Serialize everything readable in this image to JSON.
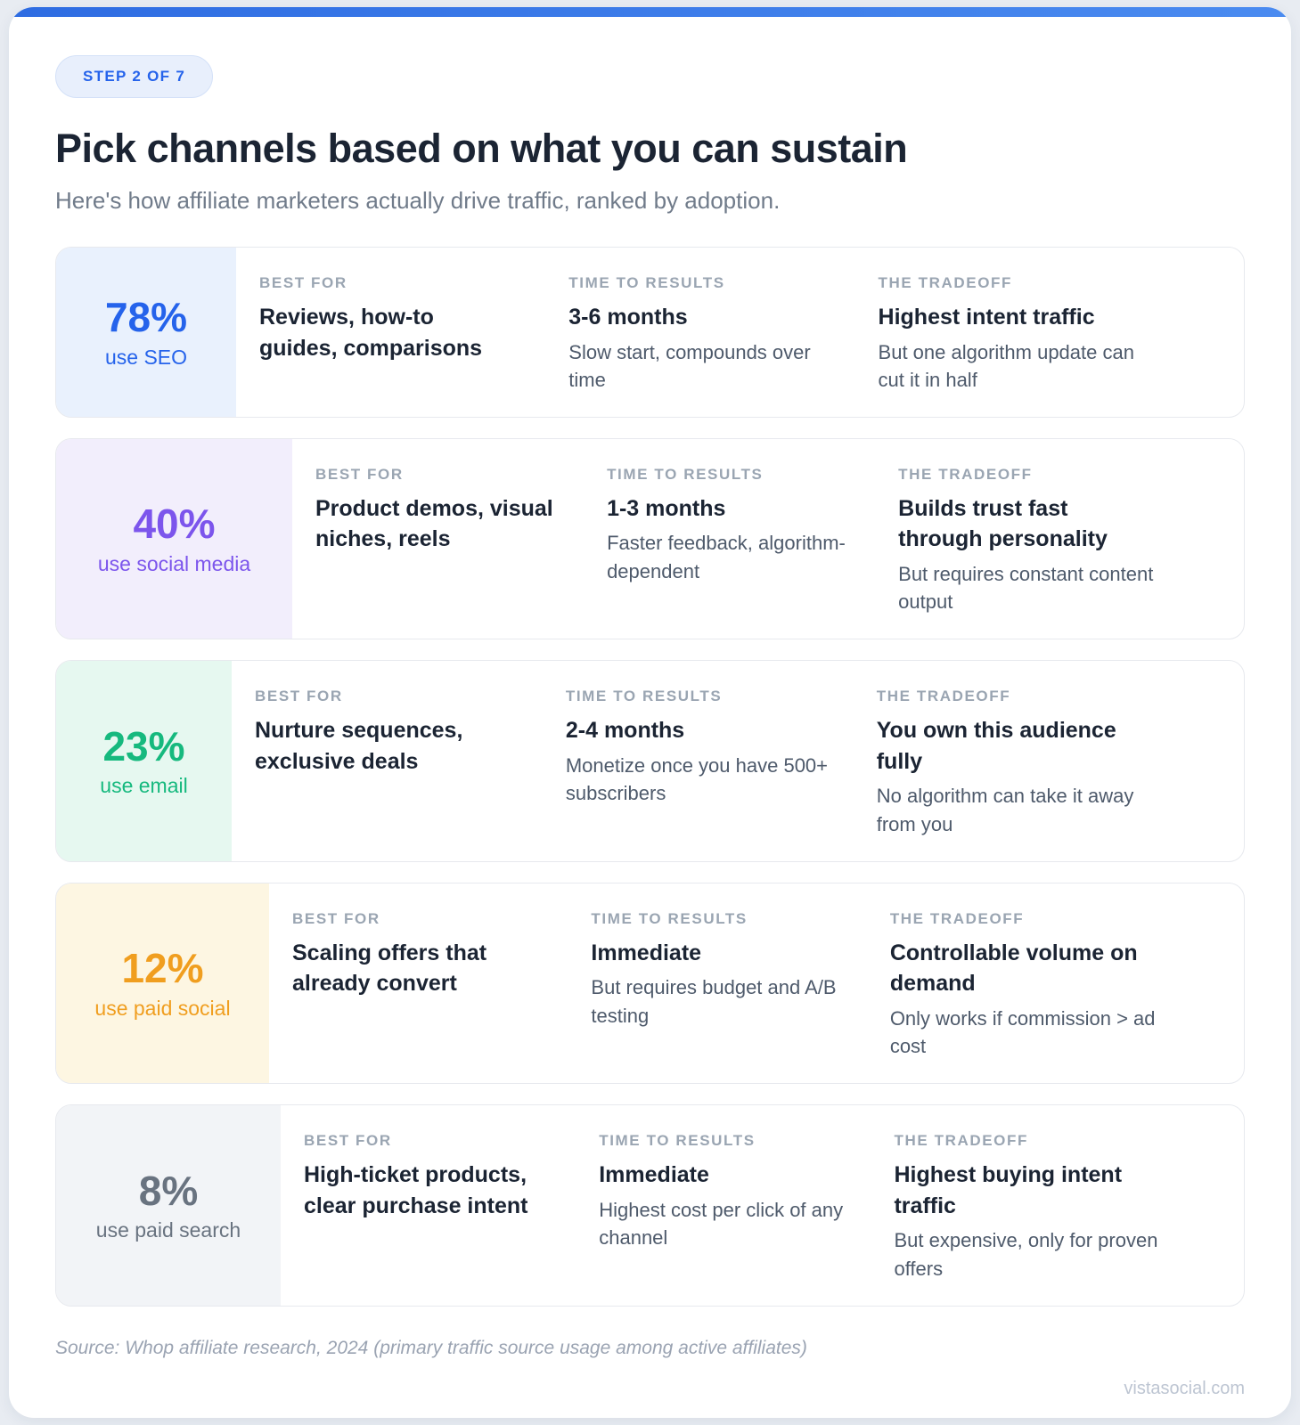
{
  "page": {
    "badge": "STEP 2 OF 7",
    "title": "Pick channels based on what you can sustain",
    "subtitle": "Here's how affiliate marketers actually drive traffic, ranked by adoption.",
    "source_note": "Source: Whop affiliate research, 2024 (primary traffic source usage among active affiliates)",
    "watermark": "vistasocial.com",
    "accent_bar_color": "#3b7ae8",
    "badge_text_color": "#2563eb",
    "badge_bg_color": "#e8effc"
  },
  "column_headings": {
    "best_for": "BEST FOR",
    "time_to_results": "TIME TO RESULTS",
    "tradeoff": "THE TRADEOFF"
  },
  "channels": [
    {
      "percent": "78%",
      "label": "use SEO",
      "accent_color": "#2563eb",
      "panel_bg": "#e9f1fd",
      "best_for": "Reviews, how-to guides, comparisons",
      "time_to_results": "3-6 months",
      "time_note": "Slow start, compounds over time",
      "tradeoff": "Highest intent traffic",
      "tradeoff_note": "But one algorithm update can cut it in half"
    },
    {
      "percent": "40%",
      "label": "use social media",
      "accent_color": "#7c55ec",
      "panel_bg": "#f2eefc",
      "best_for": "Product demos, visual niches, reels",
      "time_to_results": "1-3 months",
      "time_note": "Faster feedback, algorithm-dependent",
      "tradeoff": "Builds trust fast through personality",
      "tradeoff_note": "But requires constant content output"
    },
    {
      "percent": "23%",
      "label": "use email",
      "accent_color": "#16b97e",
      "panel_bg": "#e6f8f0",
      "best_for": "Nurture sequences, exclusive deals",
      "time_to_results": "2-4 months",
      "time_note": "Monetize once you have 500+ subscribers",
      "tradeoff": "You own this audience fully",
      "tradeoff_note": "No algorithm can take it away from you"
    },
    {
      "percent": "12%",
      "label": "use paid social",
      "accent_color": "#f09e1f",
      "panel_bg": "#fdf6e2",
      "best_for": "Scaling offers that already convert",
      "time_to_results": "Immediate",
      "time_note": "But requires budget and A/B testing",
      "tradeoff": "Controllable volume on demand",
      "tradeoff_note": "Only works if commission > ad cost"
    },
    {
      "percent": "8%",
      "label": "use paid search",
      "accent_color": "#697380",
      "panel_bg": "#f2f4f7",
      "best_for": "High-ticket products, clear purchase intent",
      "time_to_results": "Immediate",
      "time_note": "Highest cost per click of any channel",
      "tradeoff": "Highest buying intent traffic",
      "tradeoff_note": "But expensive, only for proven offers"
    }
  ]
}
